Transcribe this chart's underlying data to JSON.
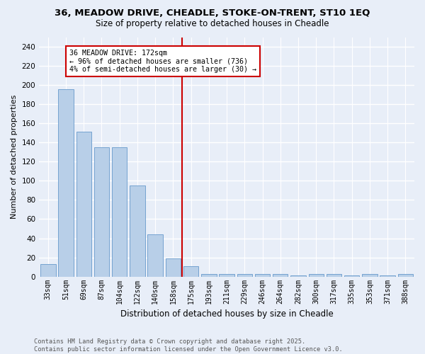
{
  "title": "36, MEADOW DRIVE, CHEADLE, STOKE-ON-TRENT, ST10 1EQ",
  "subtitle": "Size of property relative to detached houses in Cheadle",
  "xlabel": "Distribution of detached houses by size in Cheadle",
  "ylabel": "Number of detached properties",
  "bar_labels": [
    "33sqm",
    "51sqm",
    "69sqm",
    "87sqm",
    "104sqm",
    "122sqm",
    "140sqm",
    "158sqm",
    "175sqm",
    "193sqm",
    "211sqm",
    "229sqm",
    "246sqm",
    "264sqm",
    "282sqm",
    "300sqm",
    "317sqm",
    "335sqm",
    "353sqm",
    "371sqm",
    "388sqm"
  ],
  "bar_values": [
    13,
    196,
    151,
    135,
    135,
    95,
    44,
    19,
    11,
    3,
    3,
    3,
    3,
    3,
    1,
    3,
    3,
    1,
    3,
    1,
    3
  ],
  "bar_color": "#b8cfe8",
  "bar_edge_color": "#6699cc",
  "background_color": "#e8eef8",
  "grid_color": "#ffffff",
  "property_line_x": 7.5,
  "annotation_title": "36 MEADOW DRIVE: 172sqm",
  "annotation_line1": "← 96% of detached houses are smaller (736)",
  "annotation_line2": "4% of semi-detached houses are larger (30) →",
  "annotation_box_color": "#ffffff",
  "annotation_border_color": "#cc0000",
  "vline_color": "#cc0000",
  "ylim": [
    0,
    250
  ],
  "yticks": [
    0,
    20,
    40,
    60,
    80,
    100,
    120,
    140,
    160,
    180,
    200,
    220,
    240
  ],
  "footer_line1": "Contains HM Land Registry data © Crown copyright and database right 2025.",
  "footer_line2": "Contains public sector information licensed under the Open Government Licence v3.0."
}
